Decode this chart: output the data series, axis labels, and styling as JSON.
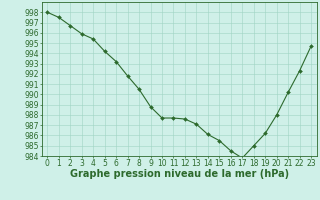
{
  "x": [
    0,
    1,
    2,
    3,
    4,
    5,
    6,
    7,
    8,
    9,
    10,
    11,
    12,
    13,
    14,
    15,
    16,
    17,
    18,
    19,
    20,
    21,
    22,
    23
  ],
  "y": [
    998.0,
    997.5,
    996.7,
    995.9,
    995.4,
    994.2,
    993.2,
    991.8,
    990.5,
    988.8,
    987.7,
    987.7,
    987.6,
    987.1,
    986.1,
    985.5,
    984.5,
    983.8,
    985.0,
    986.2,
    988.0,
    990.2,
    992.3,
    994.7
  ],
  "line_color": "#2d6a2d",
  "marker": "D",
  "marker_size": 2.0,
  "bg_color": "#cff0e8",
  "grid_color": "#a0d4c4",
  "xlabel": "Graphe pression niveau de la mer (hPa)",
  "ylim": [
    984,
    999
  ],
  "xlim_min": -0.5,
  "xlim_max": 23.5,
  "yticks": [
    984,
    985,
    986,
    987,
    988,
    989,
    990,
    991,
    992,
    993,
    994,
    995,
    996,
    997,
    998
  ],
  "xticks": [
    0,
    1,
    2,
    3,
    4,
    5,
    6,
    7,
    8,
    9,
    10,
    11,
    12,
    13,
    14,
    15,
    16,
    17,
    18,
    19,
    20,
    21,
    22,
    23
  ],
  "tick_fontsize": 5.5,
  "xlabel_fontsize": 7.0,
  "xlabel_bold": true
}
